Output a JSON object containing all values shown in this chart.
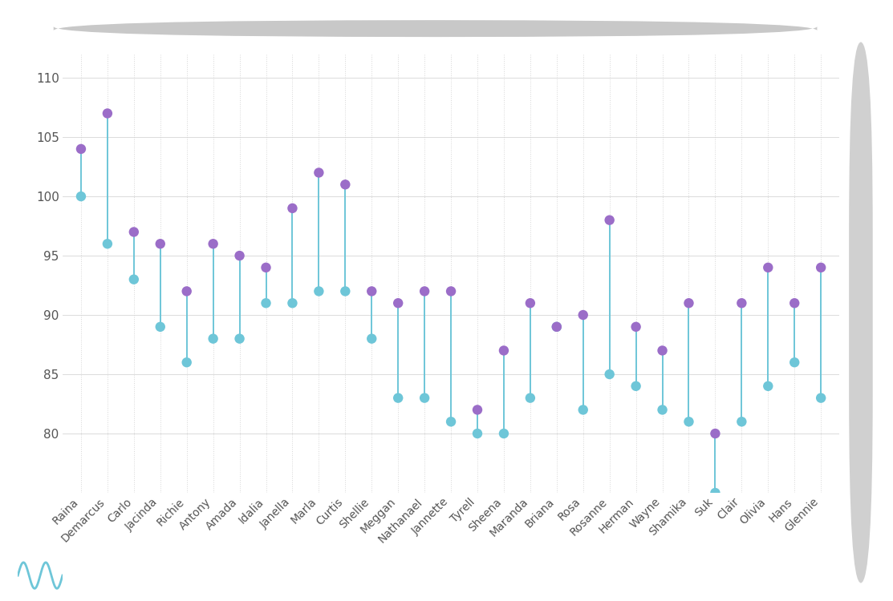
{
  "names": [
    "Raina",
    "Demarcus",
    "Carlo",
    "Jacinda",
    "Richie",
    "Antony",
    "Amada",
    "Idalia",
    "Janella",
    "Marla",
    "Curtis",
    "Shellie",
    "Meggan",
    "Nathanael",
    "Jannette",
    "Tyrell",
    "Sheena",
    "Maranda",
    "Briana",
    "Rosa",
    "Rosanne",
    "Herman",
    "Wayne",
    "Shamika",
    "Suk",
    "Clair",
    "Olivia",
    "Hans",
    "Glennie"
  ],
  "val1": [
    100,
    96,
    93,
    89,
    86,
    88,
    88,
    91,
    91,
    92,
    92,
    88,
    83,
    83,
    81,
    80,
    80,
    83,
    89,
    82,
    85,
    84,
    82,
    81,
    75,
    81,
    84,
    86,
    83
  ],
  "val2": [
    104,
    107,
    97,
    96,
    92,
    96,
    95,
    94,
    99,
    102,
    101,
    92,
    91,
    92,
    92,
    82,
    87,
    91,
    89,
    90,
    98,
    89,
    87,
    91,
    80,
    91,
    94,
    91,
    94
  ],
  "color1": "#6EC6D8",
  "color2": "#9B6DC8",
  "bg_color": "#FFFFFF",
  "plot_bg": "#FFFFFF",
  "ylim_min": 75,
  "ylim_max": 112,
  "yticks": [
    80,
    85,
    90,
    95,
    100,
    105,
    110
  ],
  "marker_size": 80,
  "line_color": "#6EC6D8",
  "line_width": 1.4,
  "grid_color": "#CCCCCC",
  "tick_label_color": "#555555",
  "scrollbar_color": "#D0D0D0",
  "topbar_color": "#C8C8C8",
  "wave_color": "#6EC6D8"
}
